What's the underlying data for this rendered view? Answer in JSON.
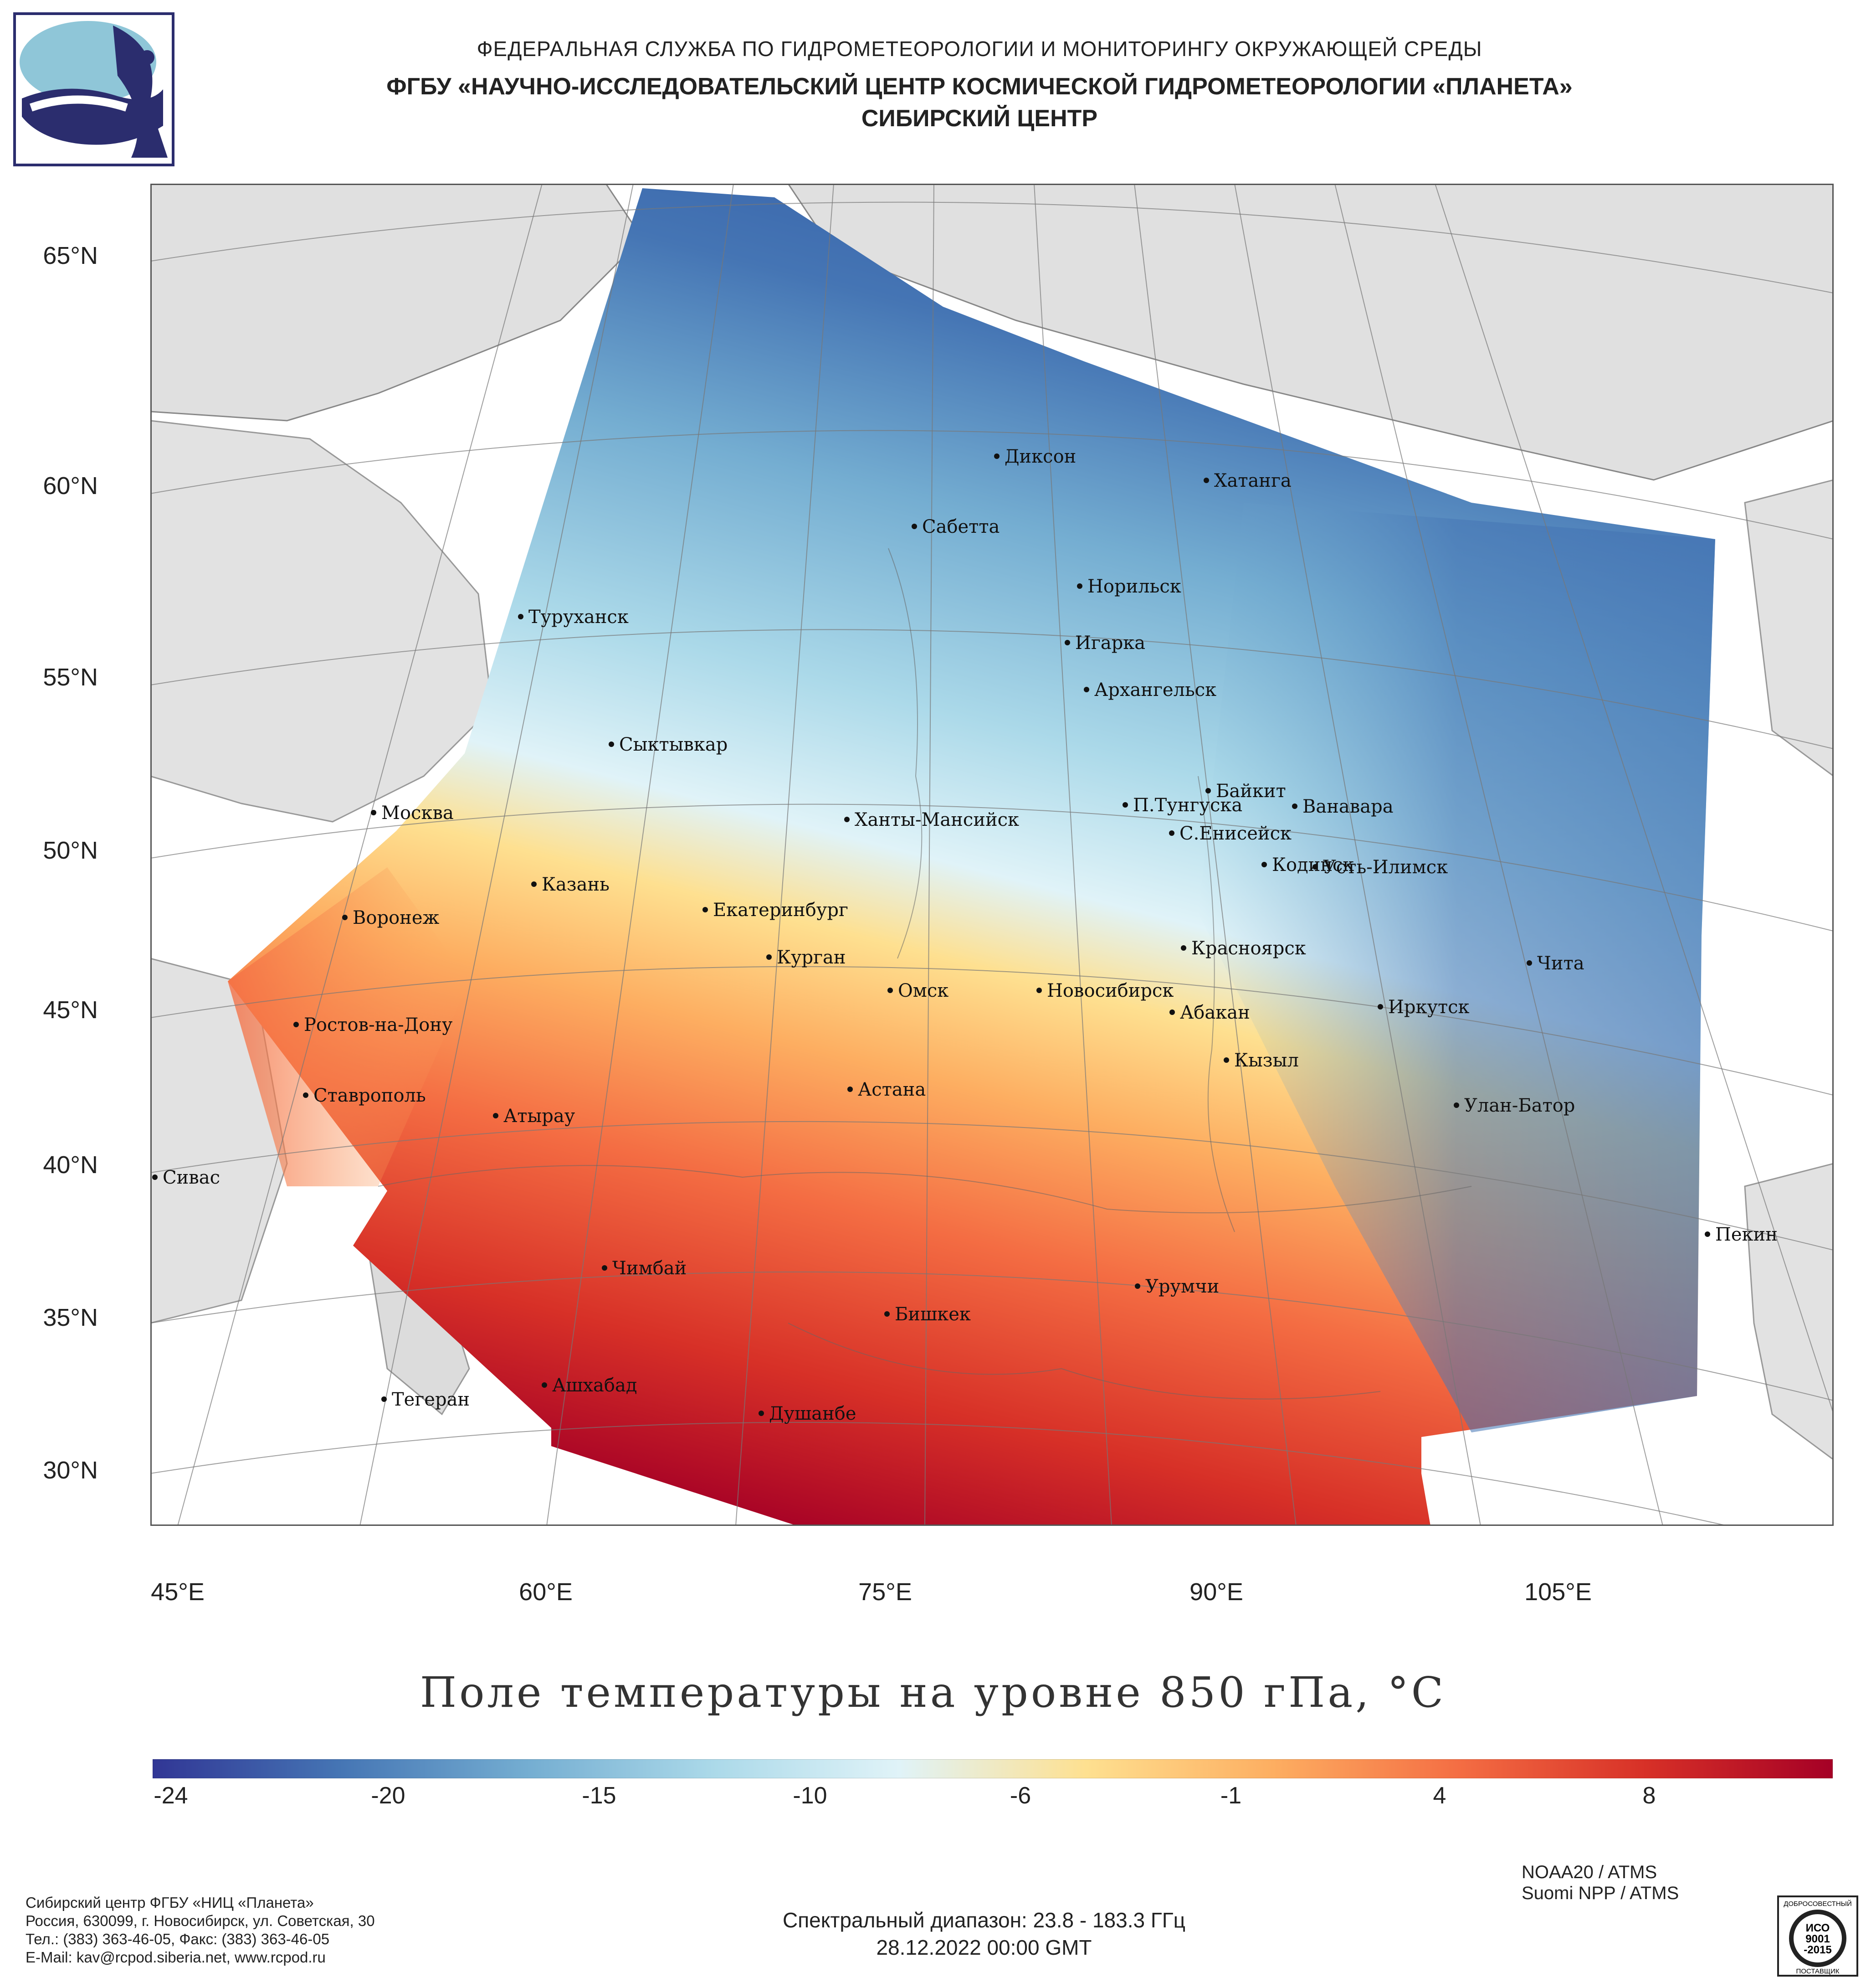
{
  "header": {
    "line1": "ФЕДЕРАЛЬНАЯ СЛУЖБА ПО ГИДРОМЕТЕОРОЛОГИИ И МОНИТОРИНГУ ОКРУЖАЮЩЕЙ СРЕДЫ",
    "line2": "ФГБУ «НАУЧНО-ИССЛЕДОВАТЕЛЬСКИЙ ЦЕНТР КОСМИЧЕСКОЙ ГИДРОМЕТЕОРОЛОГИИ «ПЛАНЕТА»",
    "line3": "СИБИРСКИЙ ЦЕНТР"
  },
  "logo_icon": "planeta-logo-icon",
  "map": {
    "lat_labels": [
      "65°N",
      "60°N",
      "55°N",
      "50°N",
      "45°N",
      "40°N",
      "35°N",
      "30°N"
    ],
    "lon_labels": [
      "45°E",
      "60°E",
      "75°E",
      "90°E",
      "105°E"
    ],
    "cities": [
      "Диксон",
      "Хатанга",
      "Сабетта",
      "Норильск",
      "Игарка",
      "Туруханск",
      "Архангельск",
      "Сыктывкар",
      "Москва",
      "Ханты-Мансийск",
      "Байкит",
      "П.Тунгуска",
      "Ванавара",
      "С.Енисейск",
      "Кодинск",
      "Усть-Илимск",
      "Казань",
      "Екатеринбург",
      "Воронеж",
      "Красноярск",
      "Курган",
      "Чита",
      "Омск",
      "Новосибирск",
      "Ростов-на-Дону",
      "Иркутск",
      "Абакан",
      "Кызыл",
      "Ставрополь",
      "Астана",
      "Улан-Батор",
      "Атырау",
      "Сивас",
      "Пекин",
      "Чимбай",
      "Урумчи",
      "Бишкек",
      "Ашхабад",
      "Тегеран",
      "Душанбе"
    ]
  },
  "title": "Поле температуры на уровне 850 гПа, °C",
  "colorbar": {
    "ticks": [
      "-24",
      "-20",
      "-15",
      "-10",
      "-6",
      "-1",
      "4",
      "8"
    ],
    "colors": [
      "#313695",
      "#4575b4",
      "#74add1",
      "#abd9e9",
      "#e0f3f8",
      "#fee090",
      "#fdae61",
      "#f46d43",
      "#d73027",
      "#a50026"
    ]
  },
  "footer": {
    "org": "Сибирский центр ФГБУ «НИЦ «Планета»",
    "address": "Россия, 630099, г. Новосибирск, ул. Советская, 30",
    "phone": "Тел.: (383) 363-46-05, Факс: (383) 363-46-05",
    "email": "E-Mail: kav@rcpod.siberia.net, www.rcpod.ru",
    "spectral": "Спектральный диапазон: 23.8 - 183.3 ГГц",
    "datetime": "28.12.2022 00:00 GMT",
    "sat1": "NOAA20 / ATMS",
    "sat2": "Suomi NPP / ATMS"
  },
  "iso_badge": {
    "top": "ДОБРОСОВЕСТНЫЙ",
    "l1": "ИСО",
    "l2": "9001",
    "l3": "-2015",
    "bottom": "ПОСТАВЩИК"
  }
}
